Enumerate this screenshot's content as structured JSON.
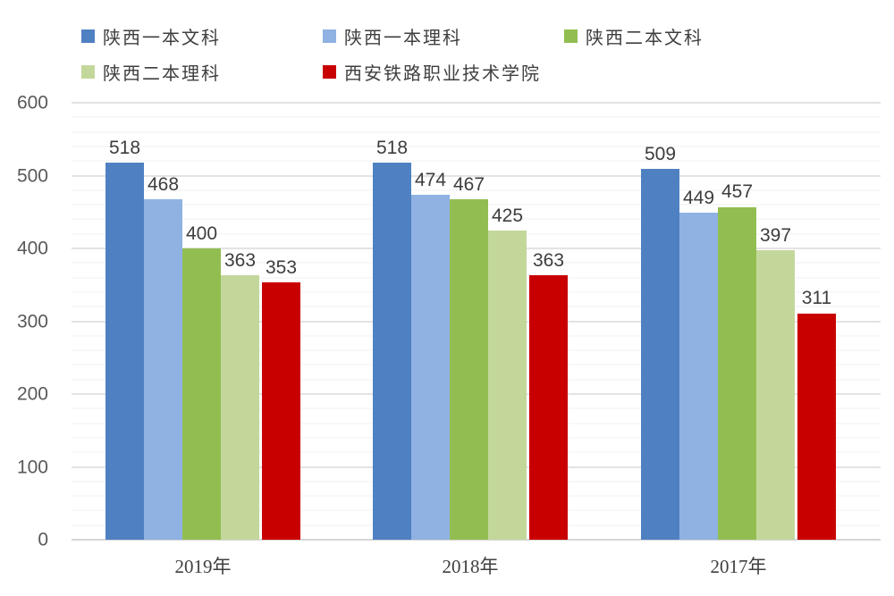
{
  "chart_data": {
    "type": "bar",
    "title": "",
    "xlabel": "",
    "ylabel": "",
    "categories": [
      "2019年",
      "2018年",
      "2017年"
    ],
    "series": [
      {
        "name": "陕西一本文科",
        "color": "#4F81C2",
        "values": [
          518,
          518,
          509
        ]
      },
      {
        "name": "陕西一本理科",
        "color": "#8FB2E2",
        "values": [
          468,
          474,
          449
        ]
      },
      {
        "name": "陕西二本文科",
        "color": "#92BE51",
        "values": [
          400,
          467,
          457
        ]
      },
      {
        "name": "陕西二本理科",
        "color": "#C3D79B",
        "values": [
          363,
          425,
          397
        ]
      },
      {
        "name": "西安铁路职业技术学院",
        "color": "#C80000",
        "values": [
          353,
          363,
          311
        ]
      }
    ],
    "ylim": [
      0,
      600
    ],
    "y_major_ticks": [
      0,
      100,
      200,
      300,
      400,
      500,
      600
    ],
    "y_minor_step": 20,
    "grid": "horizontal",
    "legend_position": "top-left",
    "legend_rows": [
      [
        0,
        1,
        2
      ],
      [
        3,
        4
      ]
    ],
    "value_labels": true
  }
}
